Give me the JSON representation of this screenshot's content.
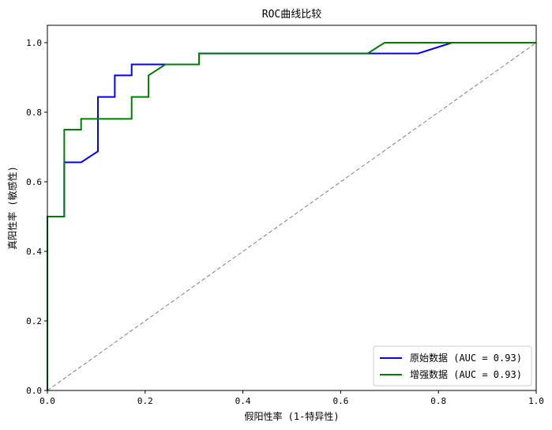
{
  "chart_data": {
    "type": "line",
    "title": "ROC曲线比较",
    "xlabel": "假阳性率 (1-特异性)",
    "ylabel": "真阳性率 (敏感性)",
    "xlim": [
      0.0,
      1.0
    ],
    "ylim": [
      0.0,
      1.05
    ],
    "x_ticks": [
      "0.0",
      "0.2",
      "0.4",
      "0.6",
      "0.8",
      "1.0"
    ],
    "y_ticks": [
      "0.0",
      "0.2",
      "0.4",
      "0.6",
      "0.8",
      "1.0"
    ],
    "grid": false,
    "legend_position": "lower-right",
    "series": [
      {
        "name": "原始数据 (AUC = 0.93)",
        "color": "#0000ff",
        "x": [
          0.0,
          0.0,
          0.0345,
          0.0345,
          0.069,
          0.069,
          0.1034,
          0.1034,
          0.1379,
          0.1379,
          0.1724,
          0.1724,
          0.2414,
          0.2414,
          0.3103,
          0.3103,
          0.7586,
          0.8276,
          1.0
        ],
        "y": [
          0.0,
          0.5,
          0.5,
          0.656,
          0.656,
          0.656,
          0.6875,
          0.844,
          0.844,
          0.906,
          0.906,
          0.9375,
          0.9375,
          0.9375,
          0.9375,
          0.969,
          0.969,
          1.0,
          1.0
        ]
      },
      {
        "name": "增强数据 (AUC = 0.93)",
        "color": "#008000",
        "x": [
          0.0,
          0.0,
          0.0345,
          0.0345,
          0.069,
          0.069,
          0.1724,
          0.1724,
          0.2069,
          0.2069,
          0.2414,
          0.3103,
          0.3103,
          0.6552,
          0.6897,
          1.0
        ],
        "y": [
          0.0,
          0.5,
          0.5,
          0.75,
          0.75,
          0.781,
          0.781,
          0.844,
          0.844,
          0.906,
          0.9375,
          0.9375,
          0.969,
          0.969,
          1.0,
          1.0
        ]
      }
    ],
    "reference_line": {
      "x": [
        0.0,
        1.0
      ],
      "y": [
        0.0,
        1.0
      ],
      "color": "#808080",
      "style": "dashed"
    }
  }
}
